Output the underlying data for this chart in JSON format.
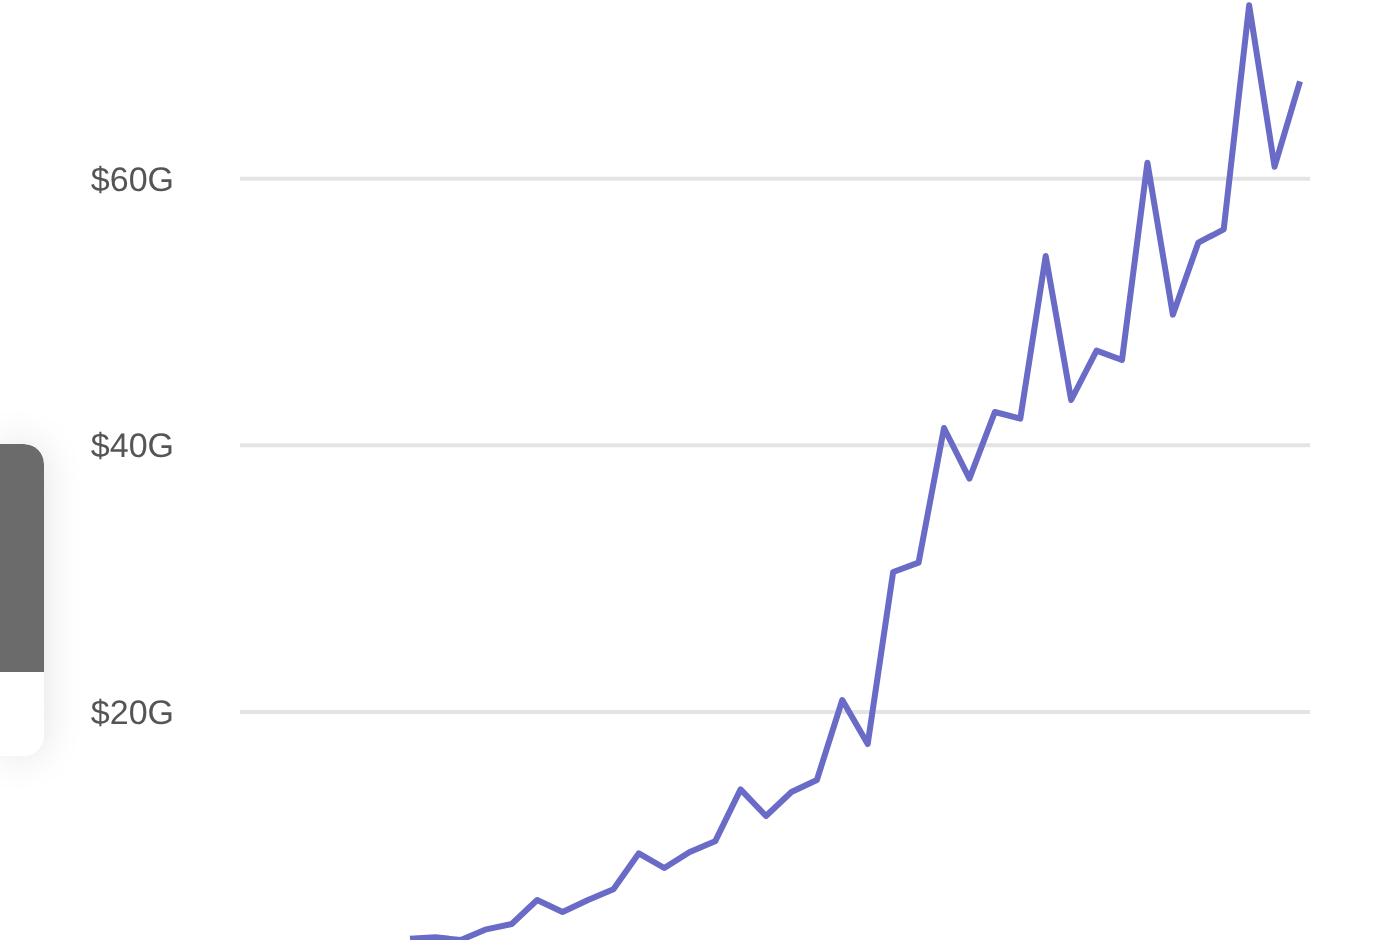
{
  "chart_data": {
    "type": "line",
    "categories": [
      null,
      null,
      null,
      null,
      null,
      null,
      null,
      null,
      null,
      null,
      null,
      null,
      null,
      null,
      null,
      null,
      null,
      null,
      null,
      null,
      null,
      null,
      null,
      null,
      null,
      null,
      null,
      null,
      null,
      null,
      null,
      null,
      null,
      null,
      null,
      null
    ],
    "series": [
      {
        "color": "#6a6bc6",
        "values": [
          3.0,
          3.1,
          2.9,
          3.7,
          4.1,
          5.9,
          5.0,
          5.9,
          6.7,
          9.4,
          8.3,
          9.5,
          10.3,
          14.2,
          12.2,
          14.0,
          14.9,
          20.9,
          17.6,
          30.5,
          31.2,
          41.3,
          37.5,
          42.5,
          42.0,
          54.2,
          43.4,
          47.1,
          46.4,
          61.2,
          49.8,
          55.2,
          56.2,
          73.0,
          60.9,
          67.3
        ]
      }
    ],
    "ylim": [
      2.9,
      73.4
    ],
    "yticks": [
      {
        "value": 20,
        "label": "$20G"
      },
      {
        "value": 40,
        "label": "$40G"
      },
      {
        "value": 60,
        "label": "$60G"
      }
    ],
    "grid": "y",
    "legend": false,
    "marker": "none",
    "line_style": "solid",
    "tick_labels": "y"
  }
}
